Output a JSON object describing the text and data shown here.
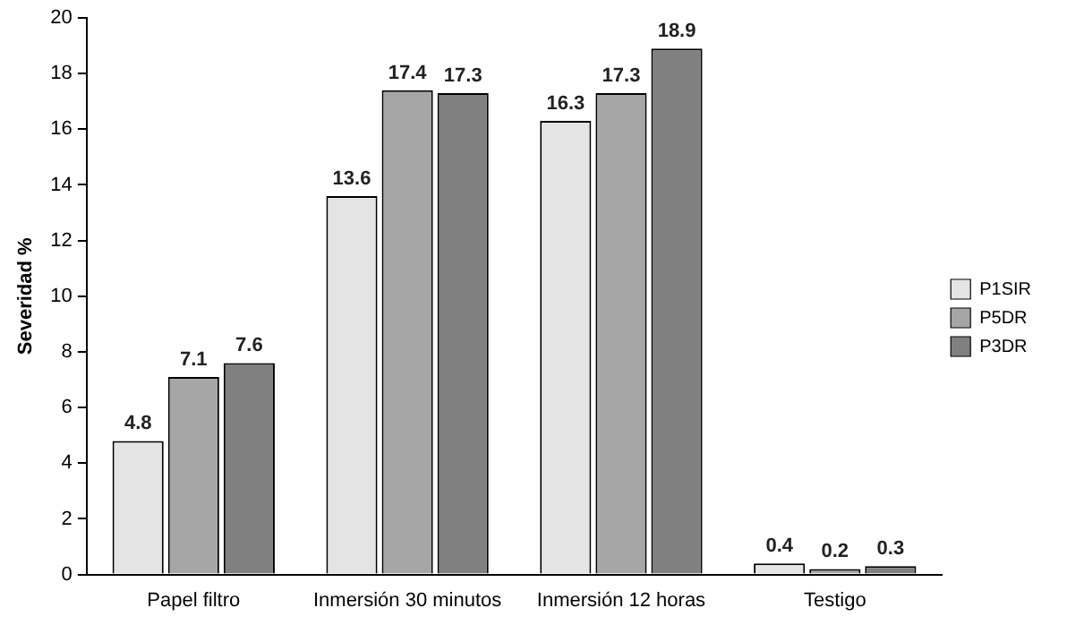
{
  "chart_data": {
    "type": "bar",
    "ylabel": "Severidad %",
    "categories": [
      "Papel filtro",
      "Inmersión 30 minutos",
      "Inmersión 12 horas",
      "Testigo"
    ],
    "series": [
      {
        "name": "P1SIR",
        "color": "#e4e4e4",
        "values": [
          4.8,
          13.6,
          16.3,
          0.4
        ]
      },
      {
        "name": "P5DR",
        "color": "#a6a6a6",
        "values": [
          7.1,
          17.4,
          17.3,
          0.2
        ]
      },
      {
        "name": "P3DR",
        "color": "#808080",
        "values": [
          7.6,
          17.3,
          18.9,
          0.3
        ]
      }
    ],
    "ylim": [
      0,
      20
    ],
    "yticks": [
      0,
      2,
      4,
      6,
      8,
      10,
      12,
      14,
      16,
      18,
      20
    ],
    "grid": false,
    "legend": "right",
    "data_labels": true
  }
}
